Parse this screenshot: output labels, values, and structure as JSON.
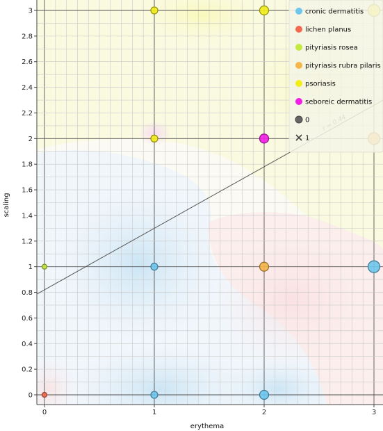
{
  "chart_data": {
    "type": "scatter",
    "xlabel": "erythema",
    "ylabel": "scaling",
    "xlim": [
      0,
      3
    ],
    "ylim": [
      0,
      3
    ],
    "x_ticks": [
      "0",
      "1",
      "2",
      "3"
    ],
    "y_ticks": [
      "0",
      "0.2",
      "0.4",
      "0.6",
      "0.8",
      "1",
      "1.2",
      "1.4",
      "1.6",
      "1.8",
      "2",
      "2.2",
      "2.4",
      "2.6",
      "2.8",
      "3"
    ],
    "grid": true,
    "legend_position": "top-right",
    "classes": [
      {
        "name": "cronic dermatitis",
        "color": "#6ec6ee"
      },
      {
        "name": "lichen planus",
        "color": "#f4694f"
      },
      {
        "name": "pityriasis rosea",
        "color": "#c3ea3f"
      },
      {
        "name": "pityriasis rubra pilaris",
        "color": "#f5b54a"
      },
      {
        "name": "psoriasis",
        "color": "#f3ee1a"
      },
      {
        "name": "seboreic dermatitis",
        "color": "#f31ee6"
      }
    ],
    "shape_legend": [
      {
        "label": "0",
        "symbol": "circle"
      },
      {
        "label": "1",
        "symbol": "cross"
      }
    ],
    "points": [
      {
        "x": 0,
        "y": 0,
        "class": "lichen planus",
        "size": "small"
      },
      {
        "x": 0,
        "y": 1,
        "class": "pityriasis rosea",
        "size": "small"
      },
      {
        "x": 1,
        "y": 0,
        "class": "cronic dermatitis",
        "size": "medium"
      },
      {
        "x": 1,
        "y": 1,
        "class": "cronic dermatitis",
        "size": "medium"
      },
      {
        "x": 1,
        "y": 2,
        "class": "psoriasis",
        "size": "medium"
      },
      {
        "x": 1,
        "y": 3,
        "class": "psoriasis",
        "size": "medium"
      },
      {
        "x": 2,
        "y": 0,
        "class": "cronic dermatitis",
        "size": "large"
      },
      {
        "x": 2,
        "y": 1,
        "class": "pityriasis rubra pilaris",
        "size": "large"
      },
      {
        "x": 2,
        "y": 2,
        "class": "seboreic dermatitis",
        "size": "large"
      },
      {
        "x": 2,
        "y": 3,
        "class": "psoriasis",
        "size": "large"
      },
      {
        "x": 3,
        "y": 1,
        "class": "cronic dermatitis",
        "size": "xlarge"
      },
      {
        "x": 3,
        "y": 2,
        "class": "pityriasis rubra pilaris",
        "size": "xlarge"
      },
      {
        "x": 3,
        "y": 3,
        "class": "psoriasis",
        "size": "xlarge"
      }
    ],
    "regression": {
      "label": "r = 0.44",
      "intercept": 0.82,
      "slope": 0.48
    },
    "background_regions": [
      {
        "class": "psoriasis",
        "area": "upper"
      },
      {
        "class": "cronic dermatitis",
        "area": "lower-left"
      },
      {
        "class": "lichen planus",
        "area": "right"
      }
    ]
  }
}
